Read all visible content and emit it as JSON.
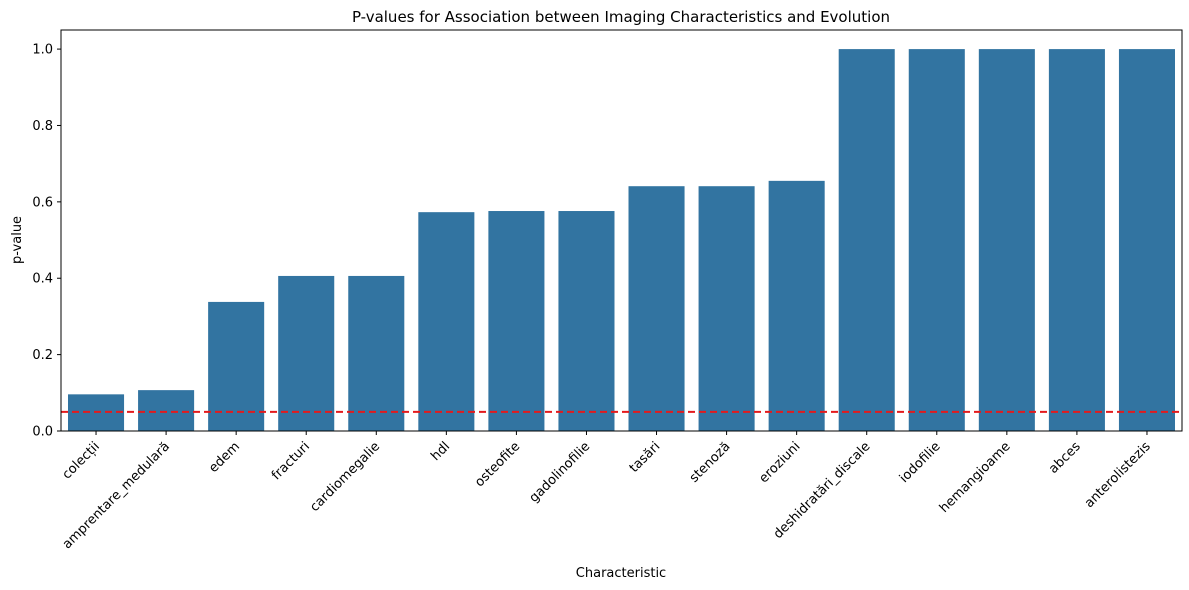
{
  "chart_data": {
    "type": "bar",
    "title": "P-values for Association between Imaging Characteristics and Evolution",
    "xlabel": "Characteristic",
    "ylabel": "p-value",
    "categories": [
      "colecții",
      "amprentare_medulară",
      "edem",
      "fracturi",
      "cardiomegalie",
      "hdl",
      "osteofite",
      "gadolinofilie",
      "tasări",
      "stenoză",
      "eroziuni",
      "deshidratări_discale",
      "iodofilie",
      "hemangioame",
      "abces",
      "anterolistezis"
    ],
    "values": [
      0.096,
      0.107,
      0.338,
      0.406,
      0.406,
      0.573,
      0.576,
      0.576,
      0.641,
      0.641,
      0.655,
      1.0,
      1.0,
      1.0,
      1.0,
      1.0
    ],
    "ylim": [
      0,
      1.05
    ],
    "yticks": [
      "0.0",
      "0.2",
      "0.4",
      "0.6",
      "0.8",
      "1.0"
    ],
    "threshold": 0.05,
    "bar_color": "#3274a1",
    "threshold_color": "#e41a1c",
    "grid": false
  }
}
